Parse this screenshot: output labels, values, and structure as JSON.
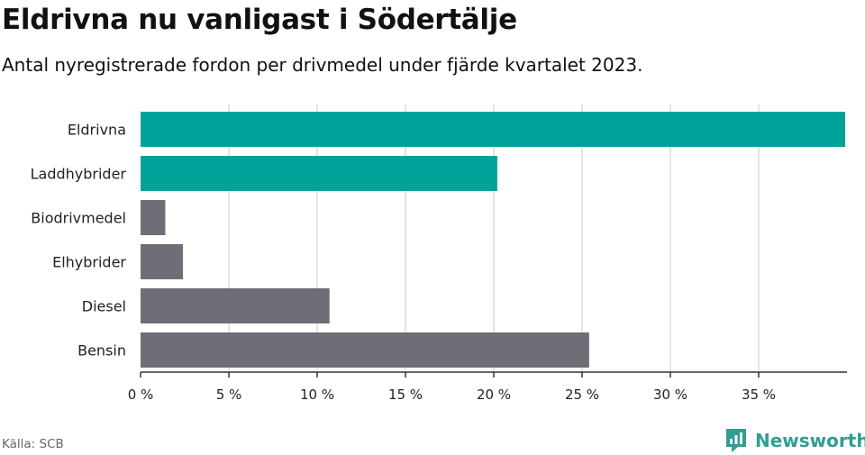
{
  "title": "Eldrivna nu vanligast i Södertälje",
  "subtitle": "Antal nyregistrerade fordon per drivmedel under fjärde kvartalet 2023.",
  "source": "Källa: SCB",
  "brand": {
    "name": "Newsworthy",
    "icon": "newsworthy-logo-icon"
  },
  "colors": {
    "highlight": "#00a39a",
    "default": "#6f6d75",
    "grid": "#dcdcdc",
    "axis": "#333333"
  },
  "chart_data": {
    "type": "bar",
    "orientation": "horizontal",
    "title": "Eldrivna nu vanligast i Södertälje",
    "subtitle": "Antal nyregistrerade fordon per drivmedel under fjärde kvartalet 2023.",
    "xlabel": "",
    "ylabel": "",
    "xlim": [
      0,
      40
    ],
    "grid": true,
    "ticks": [
      0,
      5,
      10,
      15,
      20,
      25,
      30,
      35
    ],
    "tick_labels": [
      "0 %",
      "5 %",
      "10 %",
      "15 %",
      "20 %",
      "25 %",
      "30 %",
      "35 %"
    ],
    "categories": [
      "Eldrivna",
      "Laddhybrider",
      "Biodrivmedel",
      "Elhybrider",
      "Diesel",
      "Bensin"
    ],
    "values": [
      39.9,
      20.2,
      1.4,
      2.4,
      10.7,
      25.4
    ],
    "highlight": [
      true,
      true,
      false,
      false,
      false,
      false
    ]
  }
}
